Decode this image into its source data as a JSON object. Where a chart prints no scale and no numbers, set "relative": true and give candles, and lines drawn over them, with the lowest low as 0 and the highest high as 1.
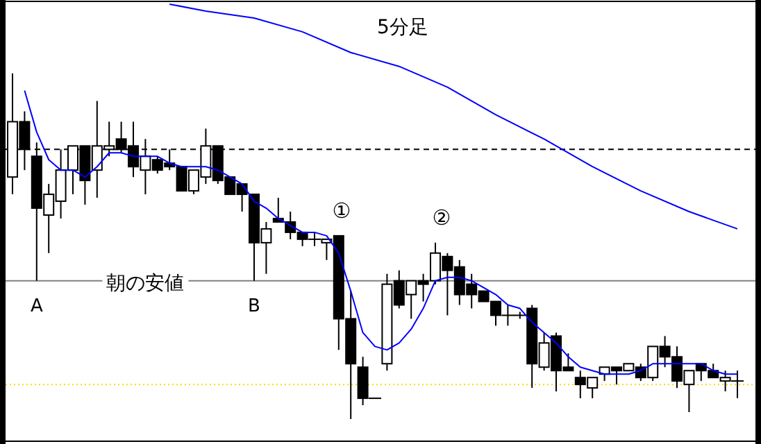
{
  "chart_data": {
    "type": "candlestick",
    "relative": true,
    "title": "5分足",
    "categories": [
      null,
      null,
      "A",
      null,
      null,
      null,
      null,
      null,
      null,
      null,
      null,
      null,
      null,
      null,
      null,
      null,
      null,
      null,
      null,
      null,
      "B",
      null,
      null,
      null,
      null,
      null,
      null,
      null,
      null,
      null,
      null,
      null,
      null,
      null,
      null,
      null,
      null,
      null,
      null,
      null,
      null,
      null,
      null,
      null,
      null,
      null,
      null,
      null,
      null,
      null,
      null,
      null,
      null,
      null,
      null,
      null,
      null,
      null,
      null,
      null,
      null
    ],
    "ohlc": [
      [
        0.7,
        1.0,
        0.65,
        0.86
      ],
      [
        0.86,
        0.89,
        0.72,
        0.78
      ],
      [
        0.76,
        0.8,
        0.4,
        0.61
      ],
      [
        0.59,
        0.68,
        0.48,
        0.65
      ],
      [
        0.63,
        0.78,
        0.58,
        0.72
      ],
      [
        0.72,
        0.79,
        0.65,
        0.79
      ],
      [
        0.79,
        0.79,
        0.62,
        0.69
      ],
      [
        0.72,
        0.92,
        0.64,
        0.79
      ],
      [
        0.78,
        0.86,
        0.76,
        0.79
      ],
      [
        0.81,
        0.86,
        0.77,
        0.78
      ],
      [
        0.79,
        0.86,
        0.7,
        0.73
      ],
      [
        0.72,
        0.81,
        0.65,
        0.76
      ],
      [
        0.75,
        0.76,
        0.71,
        0.72
      ],
      [
        0.74,
        0.78,
        0.72,
        0.73
      ],
      [
        0.73,
        0.73,
        0.66,
        0.66
      ],
      [
        0.66,
        0.72,
        0.65,
        0.72
      ],
      [
        0.7,
        0.84,
        0.68,
        0.79
      ],
      [
        0.79,
        0.79,
        0.68,
        0.69
      ],
      [
        0.7,
        0.7,
        0.65,
        0.65
      ],
      [
        0.68,
        0.68,
        0.6,
        0.65
      ],
      [
        0.65,
        0.65,
        0.4,
        0.51
      ],
      [
        0.51,
        0.57,
        0.42,
        0.55
      ],
      [
        0.58,
        0.64,
        0.57,
        0.57
      ],
      [
        0.57,
        0.6,
        0.52,
        0.54
      ],
      [
        0.54,
        0.54,
        0.5,
        0.52
      ],
      [
        0.52,
        0.54,
        0.5,
        0.52
      ],
      [
        0.51,
        0.52,
        0.46,
        0.52
      ],
      [
        0.53,
        0.53,
        0.2,
        0.29
      ],
      [
        0.29,
        0.37,
        0,
        0.16
      ],
      [
        0.15,
        0.18,
        0.04,
        0.06
      ],
      [
        0.06,
        0.06,
        0.06,
        0.06
      ],
      [
        0.16,
        0.42,
        0.14,
        0.39
      ],
      [
        0.4,
        0.43,
        0.32,
        0.33
      ],
      [
        0.36,
        0.4,
        0.29,
        0.4
      ],
      [
        0.4,
        0.42,
        0.34,
        0.39
      ],
      [
        0.4,
        0.51,
        0.39,
        0.48
      ],
      [
        0.47,
        0.48,
        0.3,
        0.43
      ],
      [
        0.44,
        0.46,
        0.33,
        0.36
      ],
      [
        0.39,
        0.42,
        0.32,
        0.36
      ],
      [
        0.37,
        0.37,
        0.34,
        0.34
      ],
      [
        0.34,
        0.34,
        0.27,
        0.3
      ],
      [
        0.3,
        0.33,
        0.27,
        0.3
      ],
      [
        0.3,
        0.31,
        0.29,
        0.3
      ],
      [
        0.32,
        0.33,
        0.09,
        0.16
      ],
      [
        0.15,
        0.25,
        0.14,
        0.22
      ],
      [
        0.24,
        0.25,
        0.08,
        0.14
      ],
      [
        0.15,
        0.19,
        0.14,
        0.14
      ],
      [
        0.12,
        0.14,
        0.06,
        0.1
      ],
      [
        0.09,
        0.12,
        0.06,
        0.12
      ],
      [
        0.13,
        0.15,
        0.11,
        0.15
      ],
      [
        0.15,
        0.15,
        0.1,
        0.14
      ],
      [
        0.14,
        0.16,
        0.14,
        0.16
      ],
      [
        0.15,
        0.16,
        0.11,
        0.12
      ],
      [
        0.12,
        0.21,
        0.11,
        0.21
      ],
      [
        0.21,
        0.24,
        0.15,
        0.18
      ],
      [
        0.18,
        0.21,
        0.09,
        0.11
      ],
      [
        0.1,
        0.14,
        0.02,
        0.14
      ],
      [
        0.16,
        0.16,
        0.11,
        0.14
      ],
      [
        0.14,
        0.16,
        0.12,
        0.12
      ],
      [
        0.11,
        0.14,
        0.08,
        0.12
      ],
      [
        0.11,
        0.14,
        0.06,
        0.11
      ]
    ],
    "series": [
      {
        "type": "line",
        "color": "#0000ff",
        "values": [
          null,
          0.95,
          0.83,
          0.75,
          0.72,
          0.72,
          0.7,
          0.73,
          0.77,
          0.77,
          0.76,
          0.76,
          0.76,
          0.74,
          0.73,
          0.73,
          0.73,
          0.72,
          0.7,
          0.68,
          0.63,
          0.61,
          0.58,
          0.56,
          0.54,
          0.54,
          0.53,
          0.48,
          0.37,
          0.25,
          0.21,
          0.2,
          0.22,
          0.26,
          0.32,
          0.4,
          0.41,
          0.41,
          0.4,
          0.38,
          0.36,
          0.33,
          0.32,
          0.28,
          0.25,
          0.22,
          0.18,
          0.15,
          0.14,
          0.13,
          0.13,
          0.13,
          0.14,
          0.16,
          0.16,
          0.16,
          0.16,
          0.16,
          0.14,
          0.13,
          0.13
        ]
      },
      {
        "type": "line",
        "color": "#0000ff",
        "values": [
          null,
          null,
          null,
          null,
          null,
          null,
          null,
          null,
          null,
          null,
          null,
          null,
          null,
          1.2,
          null,
          null,
          1.18,
          null,
          null,
          null,
          1.16,
          null,
          null,
          null,
          1.12,
          null,
          null,
          null,
          1.06,
          null,
          null,
          null,
          1.02,
          null,
          null,
          null,
          0.96,
          null,
          null,
          null,
          0.88,
          null,
          null,
          null,
          0.81,
          null,
          null,
          null,
          0.73,
          null,
          null,
          null,
          0.66,
          null,
          null,
          null,
          0.6,
          null,
          null,
          null,
          0.55
        ]
      }
    ],
    "ref_lines": [
      {
        "axis": "y",
        "value": 0.78,
        "color": "#000000",
        "line_style": "dashed"
      },
      {
        "axis": "y",
        "value": 0.4,
        "color": "#808080",
        "line_style": "solid",
        "label": "朝の安値"
      },
      {
        "axis": "y",
        "value": 0.1,
        "color": "#ffd700",
        "line_style": "dotted"
      }
    ],
    "annotations": [
      "①",
      "②"
    ]
  }
}
